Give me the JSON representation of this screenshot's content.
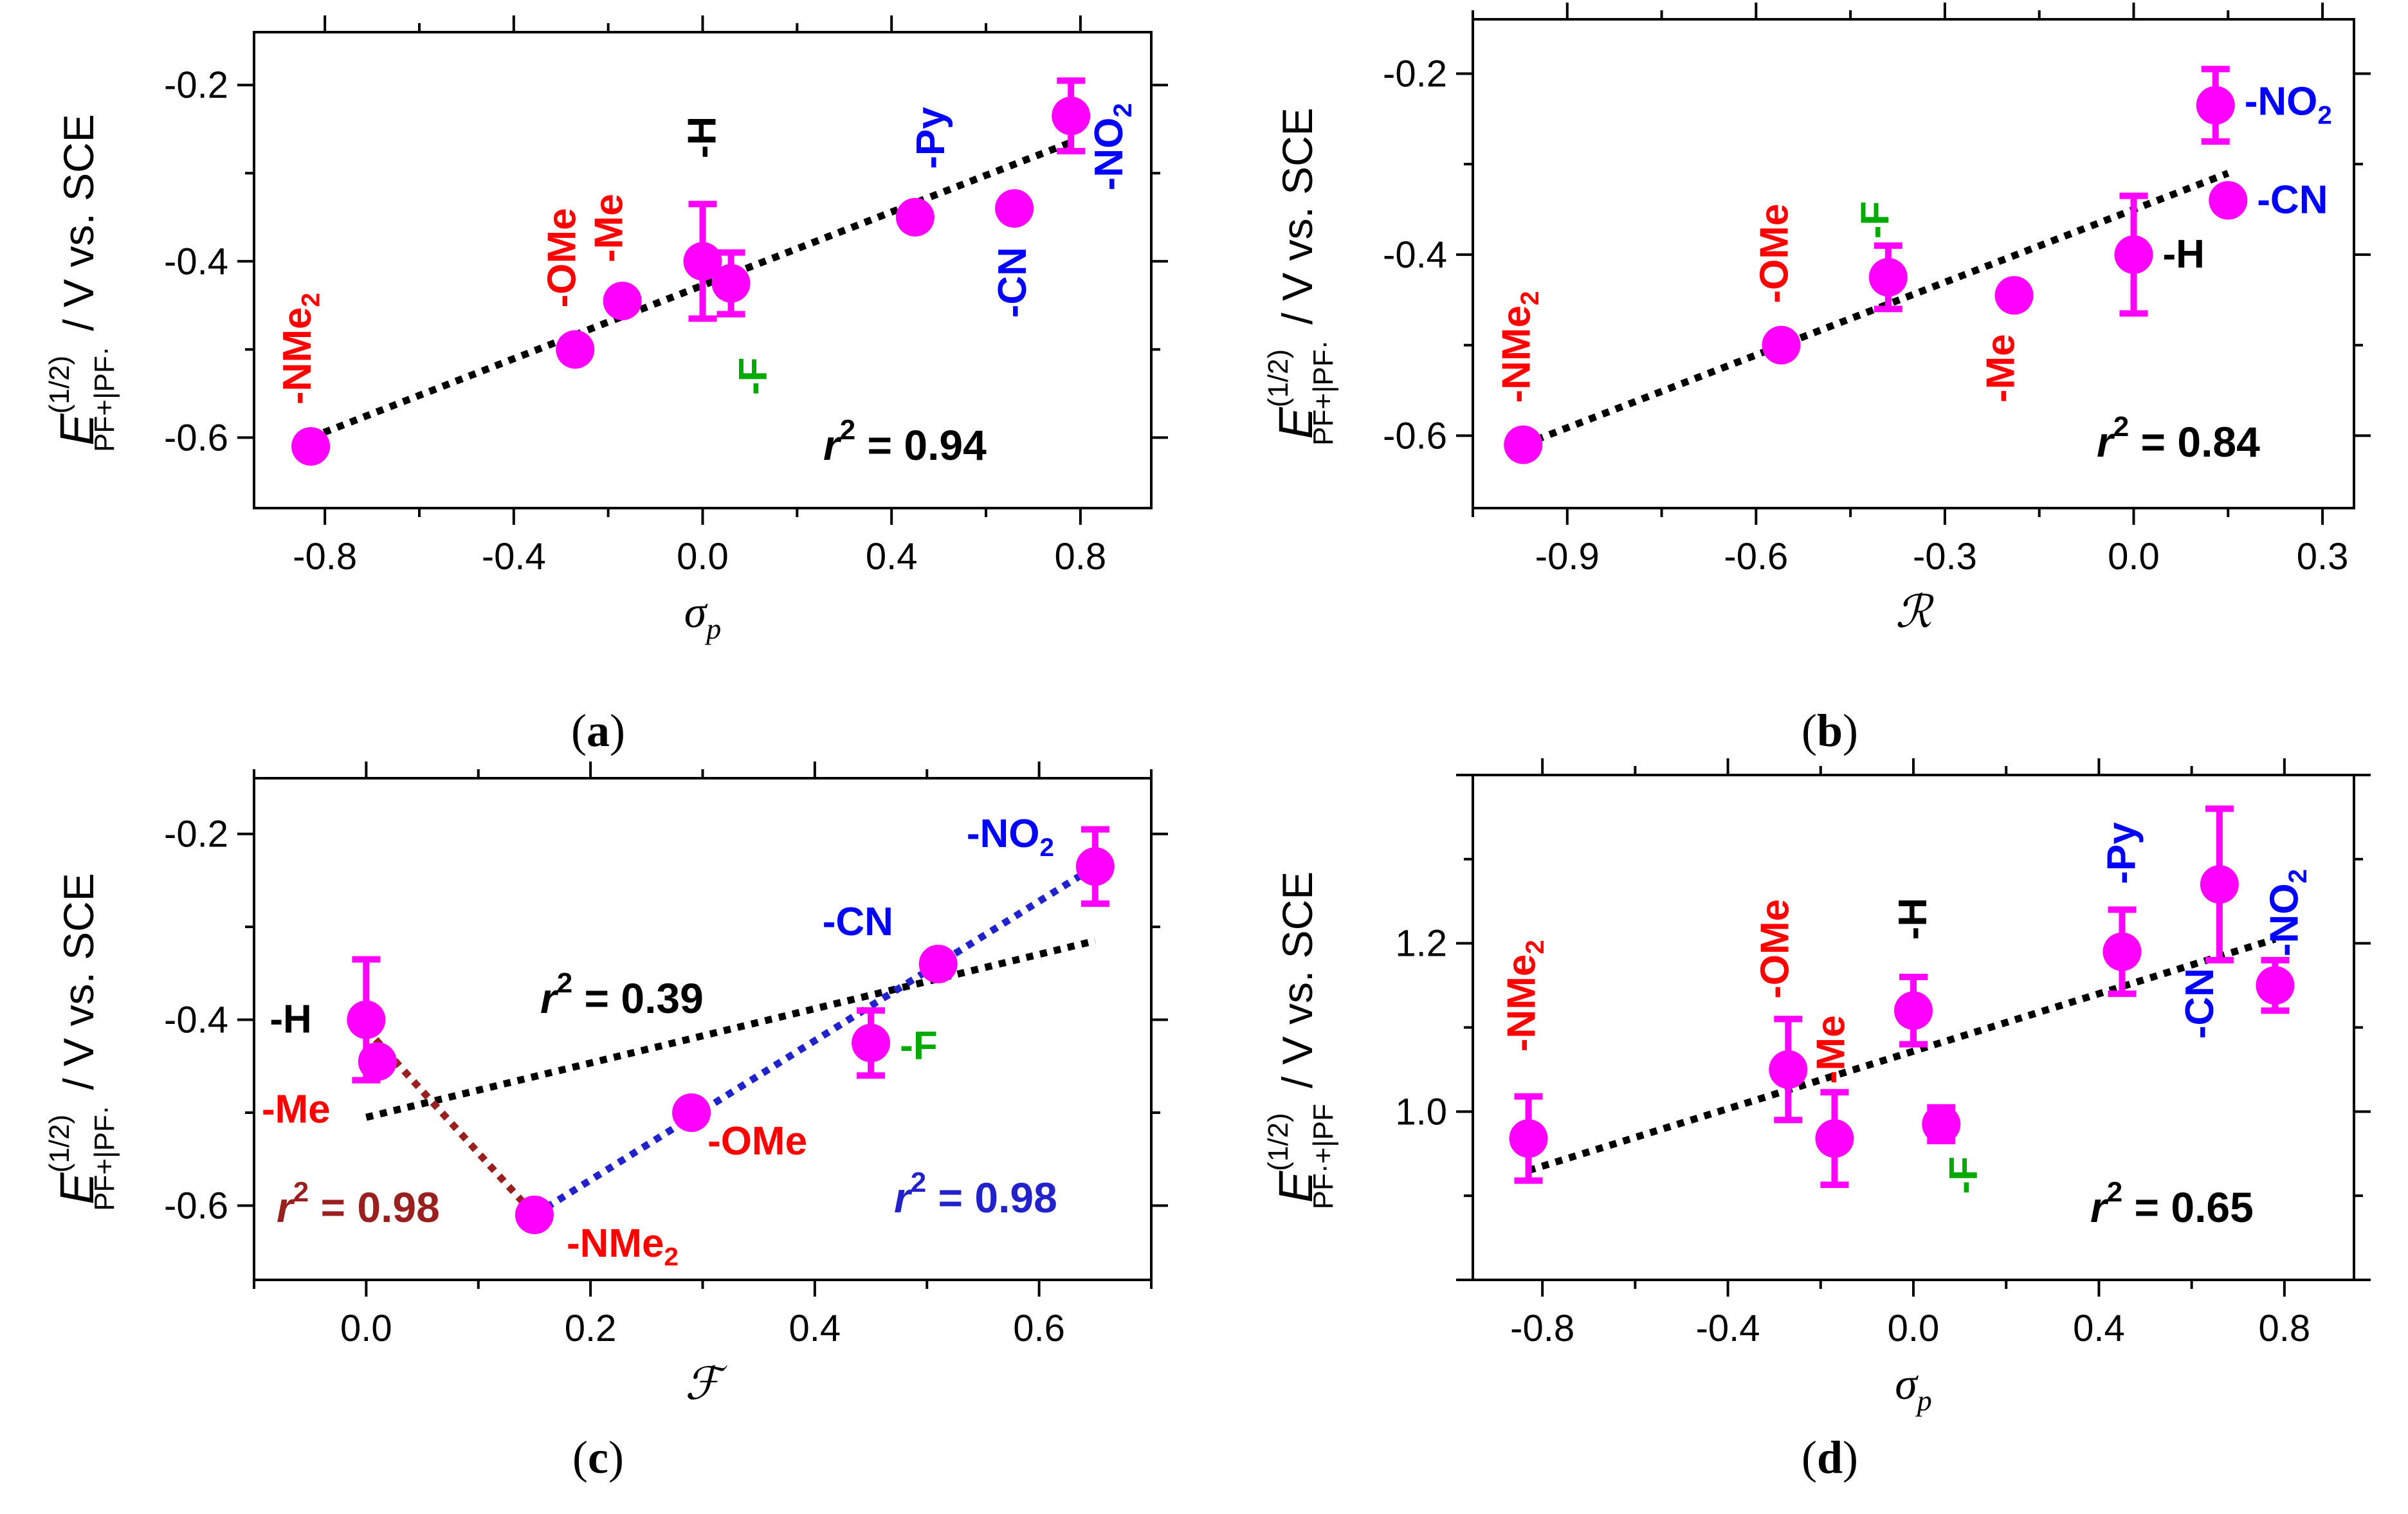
{
  "colors": {
    "marker": "#ff00ff",
    "red": "#ff0000",
    "blue": "#0000ff",
    "green": "#00aa00",
    "black": "#000000",
    "darkred": "#9a1f1f",
    "fit_blue": "#2222cc"
  },
  "chart_data": [
    {
      "id": "a",
      "type": "scatter",
      "caption": "a",
      "xlabel": "σp",
      "ylabel": "E(1/2) PF+|PF· / V vs. SCE",
      "xlim": [
        -0.95,
        0.95
      ],
      "ylim": [
        -0.68,
        -0.14
      ],
      "xticks": [
        "-0.8",
        "-0.4",
        "0.0",
        "0.4",
        "0.8"
      ],
      "yticks": [
        "-0.6",
        "-0.4",
        "-0.2"
      ],
      "points": [
        {
          "label": "-NMe2",
          "x": -0.83,
          "y": -0.61,
          "err": 0,
          "color": "red"
        },
        {
          "label": "-OMe",
          "x": -0.27,
          "y": -0.5,
          "err": 0,
          "color": "red"
        },
        {
          "label": "-Me",
          "x": -0.17,
          "y": -0.445,
          "err": 0,
          "color": "red"
        },
        {
          "label": "-H",
          "x": 0.0,
          "y": -0.4,
          "err": 0.065,
          "color": "black"
        },
        {
          "label": "-F",
          "x": 0.06,
          "y": -0.425,
          "err": 0.035,
          "color": "green"
        },
        {
          "label": "-Py",
          "x": 0.45,
          "y": -0.35,
          "err": 0,
          "color": "blue"
        },
        {
          "label": "-CN",
          "x": 0.66,
          "y": -0.34,
          "err": 0,
          "color": "blue"
        },
        {
          "label": "-NO2",
          "x": 0.78,
          "y": -0.235,
          "err": 0.04,
          "color": "blue"
        }
      ],
      "fits": [
        {
          "x": [
            -0.83,
            0.78
          ],
          "y": [
            -0.6,
            -0.265
          ],
          "color": "black"
        }
      ],
      "r2": [
        {
          "label": "r",
          "value": "= 0.94",
          "color": "black"
        }
      ]
    },
    {
      "id": "b",
      "type": "scatter",
      "caption": "b",
      "xlabel": "ℛ",
      "ylabel": "E(1/2) PF+|PF· / V vs. SCE",
      "xlim": [
        -1.05,
        0.35
      ],
      "ylim": [
        -0.68,
        -0.14
      ],
      "xticks": [
        "-0.9",
        "-0.6",
        "-0.3",
        "0.0",
        "0.3"
      ],
      "yticks": [
        "-0.6",
        "-0.4",
        "-0.2"
      ],
      "points": [
        {
          "label": "-NMe2",
          "x": -0.97,
          "y": -0.61,
          "err": 0,
          "color": "red"
        },
        {
          "label": "-OMe",
          "x": -0.56,
          "y": -0.5,
          "err": 0,
          "color": "red"
        },
        {
          "label": "-F",
          "x": -0.39,
          "y": -0.425,
          "err": 0.035,
          "color": "green"
        },
        {
          "label": "-Me",
          "x": -0.19,
          "y": -0.445,
          "err": 0,
          "color": "red"
        },
        {
          "label": "-H",
          "x": 0.0,
          "y": -0.4,
          "err": 0.065,
          "color": "black"
        },
        {
          "label": "-NO2",
          "x": 0.13,
          "y": -0.235,
          "err": 0.04,
          "color": "blue"
        },
        {
          "label": "-CN",
          "x": 0.15,
          "y": -0.34,
          "err": 0,
          "color": "blue"
        }
      ],
      "fits": [
        {
          "x": [
            -0.97,
            0.15
          ],
          "y": [
            -0.61,
            -0.31
          ],
          "color": "black"
        }
      ],
      "r2": [
        {
          "label": "r",
          "value": "= 0.84",
          "color": "black"
        }
      ]
    },
    {
      "id": "c",
      "type": "scatter",
      "caption": "c",
      "xlabel": "ℱ",
      "ylabel": "E(1/2) PF+|PF· / V vs. SCE",
      "xlim": [
        -0.1,
        0.7
      ],
      "ylim": [
        -0.68,
        -0.14
      ],
      "xticks": [
        "0.0",
        "0.2",
        "0.4",
        "0.6"
      ],
      "yticks": [
        "-0.6",
        "-0.4",
        "-0.2"
      ],
      "points": [
        {
          "label": "-H",
          "x": 0.0,
          "y": -0.4,
          "err": 0.065,
          "color": "black"
        },
        {
          "label": "-Me",
          "x": 0.01,
          "y": -0.445,
          "err": 0,
          "color": "red"
        },
        {
          "label": "-NMe2",
          "x": 0.15,
          "y": -0.61,
          "err": 0,
          "color": "red"
        },
        {
          "label": "-OMe",
          "x": 0.29,
          "y": -0.5,
          "err": 0,
          "color": "red"
        },
        {
          "label": "-F",
          "x": 0.45,
          "y": -0.425,
          "err": 0.035,
          "color": "green"
        },
        {
          "label": "-CN",
          "x": 0.51,
          "y": -0.34,
          "err": 0,
          "color": "blue"
        },
        {
          "label": "-NO2",
          "x": 0.65,
          "y": -0.235,
          "err": 0.04,
          "color": "blue"
        }
      ],
      "fits": [
        {
          "x": [
            0.0,
            0.65
          ],
          "y": [
            -0.505,
            -0.315
          ],
          "color": "black"
        },
        {
          "x": [
            0.0,
            0.15
          ],
          "y": [
            -0.41,
            -0.61
          ],
          "color": "darkred"
        },
        {
          "x": [
            0.15,
            0.65
          ],
          "y": [
            -0.61,
            -0.235
          ],
          "color": "fit_blue"
        }
      ],
      "r2": [
        {
          "label": "r",
          "value": "= 0.39",
          "color": "black"
        },
        {
          "label": "r",
          "value": "= 0.98",
          "color": "darkred"
        },
        {
          "label": "r",
          "value": "= 0.98",
          "color": "fit_blue"
        }
      ]
    },
    {
      "id": "d",
      "type": "scatter",
      "caption": "d",
      "xlabel": "σp",
      "ylabel": "E(1/2) PF·+|PF / V vs. SCE",
      "xlim": [
        -0.95,
        0.95
      ],
      "ylim": [
        0.8,
        1.4
      ],
      "xticks": [
        "-0.8",
        "-0.4",
        "0.0",
        "0.4",
        "0.8"
      ],
      "yticks": [
        "1.0",
        "1.2"
      ],
      "points": [
        {
          "label": "-NMe2",
          "x": -0.83,
          "y": 0.968,
          "err": 0.05,
          "color": "red"
        },
        {
          "label": "-OMe",
          "x": -0.27,
          "y": 1.05,
          "err": 0.06,
          "color": "red"
        },
        {
          "label": "-Me",
          "x": -0.17,
          "y": 0.968,
          "err": 0.055,
          "color": "red"
        },
        {
          "label": "-H",
          "x": 0.0,
          "y": 1.12,
          "err": 0.04,
          "color": "black"
        },
        {
          "label": "-F",
          "x": 0.06,
          "y": 0.985,
          "err": 0.02,
          "color": "green"
        },
        {
          "label": "-Py",
          "x": 0.45,
          "y": 1.19,
          "err": 0.05,
          "color": "blue"
        },
        {
          "label": "-CN",
          "x": 0.66,
          "y": 1.27,
          "err": 0.09,
          "color": "blue"
        },
        {
          "label": "-NO2",
          "x": 0.78,
          "y": 1.15,
          "err": 0.03,
          "color": "blue"
        }
      ],
      "fits": [
        {
          "x": [
            -0.83,
            0.78
          ],
          "y": [
            0.93,
            1.205
          ],
          "color": "black"
        }
      ],
      "r2": [
        {
          "label": "r",
          "value": "= 0.65",
          "color": "black"
        }
      ]
    }
  ]
}
